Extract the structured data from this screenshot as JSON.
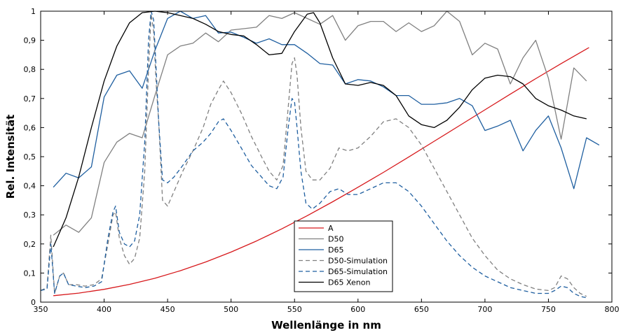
{
  "chart_data": {
    "type": "line",
    "title": "",
    "xlabel": "Wellenlänge in nm",
    "ylabel": "Rel. Intensität",
    "xlim": [
      350,
      800
    ],
    "ylim": [
      0,
      1
    ],
    "xticks": [
      350,
      400,
      450,
      500,
      550,
      600,
      650,
      700,
      750,
      800
    ],
    "yticks": [
      0,
      0.1,
      0.2,
      0.3,
      0.4,
      0.5,
      0.6,
      0.7,
      0.8,
      0.9,
      1
    ],
    "xtick_labels": [
      "350",
      "400",
      "450",
      "500",
      "550",
      "600",
      "650",
      "700",
      "750",
      "800"
    ],
    "ytick_labels": [
      "0",
      "0,1",
      "0,2",
      "0,3",
      "0,4",
      "0,5",
      "0,6",
      "0,7",
      "0,8",
      "0,9",
      "1"
    ],
    "grid": false,
    "legend_position": "bottom-center",
    "series": [
      {
        "name": "A",
        "color": "#d7191c",
        "dash": "solid",
        "points": [
          [
            360,
            0.022
          ],
          [
            380,
            0.031
          ],
          [
            400,
            0.044
          ],
          [
            420,
            0.061
          ],
          [
            440,
            0.082
          ],
          [
            460,
            0.108
          ],
          [
            480,
            0.138
          ],
          [
            500,
            0.172
          ],
          [
            520,
            0.21
          ],
          [
            540,
            0.252
          ],
          [
            560,
            0.297
          ],
          [
            580,
            0.345
          ],
          [
            600,
            0.395
          ],
          [
            620,
            0.446
          ],
          [
            640,
            0.499
          ],
          [
            660,
            0.553
          ],
          [
            680,
            0.607
          ],
          [
            700,
            0.661
          ],
          [
            720,
            0.715
          ],
          [
            740,
            0.768
          ],
          [
            760,
            0.82
          ],
          [
            780,
            0.87
          ],
          [
            782,
            0.875
          ]
        ]
      },
      {
        "name": "D50",
        "color": "#808080",
        "dash": "solid",
        "points": [
          [
            360,
            0.23
          ],
          [
            370,
            0.265
          ],
          [
            380,
            0.24
          ],
          [
            390,
            0.29
          ],
          [
            400,
            0.48
          ],
          [
            410,
            0.55
          ],
          [
            420,
            0.58
          ],
          [
            430,
            0.565
          ],
          [
            440,
            0.71
          ],
          [
            450,
            0.85
          ],
          [
            460,
            0.88
          ],
          [
            470,
            0.89
          ],
          [
            480,
            0.925
          ],
          [
            490,
            0.895
          ],
          [
            500,
            0.935
          ],
          [
            510,
            0.94
          ],
          [
            520,
            0.945
          ],
          [
            530,
            0.985
          ],
          [
            540,
            0.975
          ],
          [
            550,
            0.995
          ],
          [
            560,
            0.975
          ],
          [
            570,
            0.955
          ],
          [
            580,
            0.985
          ],
          [
            590,
            0.9
          ],
          [
            600,
            0.95
          ],
          [
            610,
            0.965
          ],
          [
            620,
            0.965
          ],
          [
            630,
            0.93
          ],
          [
            640,
            0.96
          ],
          [
            650,
            0.93
          ],
          [
            660,
            0.95
          ],
          [
            670,
            1.0
          ],
          [
            680,
            0.965
          ],
          [
            690,
            0.85
          ],
          [
            700,
            0.89
          ],
          [
            710,
            0.87
          ],
          [
            720,
            0.75
          ],
          [
            730,
            0.84
          ],
          [
            740,
            0.9
          ],
          [
            750,
            0.77
          ],
          [
            760,
            0.56
          ],
          [
            770,
            0.805
          ],
          [
            780,
            0.76
          ]
        ]
      },
      {
        "name": "D65",
        "color": "#1f5fa0",
        "dash": "solid",
        "points": [
          [
            360,
            0.395
          ],
          [
            370,
            0.443
          ],
          [
            380,
            0.427
          ],
          [
            390,
            0.465
          ],
          [
            400,
            0.705
          ],
          [
            410,
            0.78
          ],
          [
            420,
            0.795
          ],
          [
            430,
            0.735
          ],
          [
            440,
            0.865
          ],
          [
            450,
            0.975
          ],
          [
            460,
            1.0
          ],
          [
            470,
            0.975
          ],
          [
            480,
            0.985
          ],
          [
            490,
            0.925
          ],
          [
            500,
            0.928
          ],
          [
            510,
            0.91
          ],
          [
            520,
            0.89
          ],
          [
            530,
            0.905
          ],
          [
            540,
            0.885
          ],
          [
            550,
            0.885
          ],
          [
            560,
            0.855
          ],
          [
            570,
            0.82
          ],
          [
            580,
            0.815
          ],
          [
            590,
            0.75
          ],
          [
            600,
            0.765
          ],
          [
            610,
            0.76
          ],
          [
            620,
            0.74
          ],
          [
            630,
            0.71
          ],
          [
            640,
            0.71
          ],
          [
            650,
            0.68
          ],
          [
            660,
            0.68
          ],
          [
            670,
            0.685
          ],
          [
            680,
            0.7
          ],
          [
            690,
            0.675
          ],
          [
            700,
            0.59
          ],
          [
            710,
            0.605
          ],
          [
            720,
            0.625
          ],
          [
            730,
            0.52
          ],
          [
            740,
            0.59
          ],
          [
            750,
            0.64
          ],
          [
            760,
            0.53
          ],
          [
            770,
            0.39
          ],
          [
            780,
            0.565
          ],
          [
            790,
            0.54
          ]
        ]
      },
      {
        "name": "D50-Simulation",
        "color": "#808080",
        "dash": "dashed",
        "points": [
          [
            350,
            0.04
          ],
          [
            355,
            0.05
          ],
          [
            358,
            0.23
          ],
          [
            361,
            0.03
          ],
          [
            365,
            0.09
          ],
          [
            368,
            0.1
          ],
          [
            372,
            0.06
          ],
          [
            378,
            0.06
          ],
          [
            385,
            0.055
          ],
          [
            392,
            0.06
          ],
          [
            398,
            0.08
          ],
          [
            403,
            0.2
          ],
          [
            407,
            0.3
          ],
          [
            409,
            0.31
          ],
          [
            412,
            0.22
          ],
          [
            416,
            0.16
          ],
          [
            420,
            0.13
          ],
          [
            424,
            0.15
          ],
          [
            428,
            0.22
          ],
          [
            432,
            0.45
          ],
          [
            435,
            0.8
          ],
          [
            437,
            0.99
          ],
          [
            439,
            0.93
          ],
          [
            441,
            0.75
          ],
          [
            443,
            0.62
          ],
          [
            446,
            0.35
          ],
          [
            450,
            0.33
          ],
          [
            455,
            0.38
          ],
          [
            462,
            0.45
          ],
          [
            470,
            0.52
          ],
          [
            478,
            0.6
          ],
          [
            484,
            0.68
          ],
          [
            490,
            0.73
          ],
          [
            494,
            0.76
          ],
          [
            500,
            0.72
          ],
          [
            508,
            0.65
          ],
          [
            516,
            0.57
          ],
          [
            524,
            0.5
          ],
          [
            530,
            0.45
          ],
          [
            536,
            0.42
          ],
          [
            541,
            0.47
          ],
          [
            545,
            0.67
          ],
          [
            548,
            0.82
          ],
          [
            550,
            0.84
          ],
          [
            552,
            0.78
          ],
          [
            555,
            0.6
          ],
          [
            559,
            0.45
          ],
          [
            564,
            0.42
          ],
          [
            570,
            0.42
          ],
          [
            578,
            0.46
          ],
          [
            585,
            0.53
          ],
          [
            592,
            0.52
          ],
          [
            600,
            0.53
          ],
          [
            610,
            0.57
          ],
          [
            620,
            0.62
          ],
          [
            630,
            0.63
          ],
          [
            640,
            0.6
          ],
          [
            650,
            0.54
          ],
          [
            660,
            0.46
          ],
          [
            670,
            0.38
          ],
          [
            680,
            0.3
          ],
          [
            690,
            0.22
          ],
          [
            700,
            0.16
          ],
          [
            710,
            0.11
          ],
          [
            720,
            0.08
          ],
          [
            730,
            0.06
          ],
          [
            740,
            0.045
          ],
          [
            750,
            0.04
          ],
          [
            755,
            0.05
          ],
          [
            760,
            0.09
          ],
          [
            765,
            0.08
          ],
          [
            770,
            0.05
          ],
          [
            775,
            0.03
          ],
          [
            780,
            0.02
          ]
        ]
      },
      {
        "name": "D65-Simulation",
        "color": "#1f5fa0",
        "dash": "dashed",
        "points": [
          [
            350,
            0.04
          ],
          [
            355,
            0.045
          ],
          [
            358,
            0.2
          ],
          [
            361,
            0.03
          ],
          [
            365,
            0.09
          ],
          [
            368,
            0.1
          ],
          [
            372,
            0.06
          ],
          [
            378,
            0.055
          ],
          [
            385,
            0.05
          ],
          [
            392,
            0.055
          ],
          [
            398,
            0.07
          ],
          [
            403,
            0.22
          ],
          [
            407,
            0.31
          ],
          [
            409,
            0.33
          ],
          [
            412,
            0.24
          ],
          [
            416,
            0.2
          ],
          [
            420,
            0.19
          ],
          [
            424,
            0.21
          ],
          [
            428,
            0.3
          ],
          [
            432,
            0.55
          ],
          [
            435,
            0.9
          ],
          [
            437,
            1.0
          ],
          [
            439,
            0.97
          ],
          [
            441,
            0.8
          ],
          [
            443,
            0.62
          ],
          [
            446,
            0.42
          ],
          [
            450,
            0.41
          ],
          [
            455,
            0.43
          ],
          [
            462,
            0.47
          ],
          [
            470,
            0.52
          ],
          [
            478,
            0.55
          ],
          [
            484,
            0.58
          ],
          [
            490,
            0.62
          ],
          [
            494,
            0.63
          ],
          [
            500,
            0.59
          ],
          [
            508,
            0.53
          ],
          [
            516,
            0.47
          ],
          [
            524,
            0.43
          ],
          [
            530,
            0.4
          ],
          [
            536,
            0.39
          ],
          [
            541,
            0.43
          ],
          [
            545,
            0.6
          ],
          [
            548,
            0.7
          ],
          [
            550,
            0.69
          ],
          [
            552,
            0.6
          ],
          [
            555,
            0.45
          ],
          [
            559,
            0.34
          ],
          [
            564,
            0.32
          ],
          [
            570,
            0.34
          ],
          [
            578,
            0.38
          ],
          [
            585,
            0.39
          ],
          [
            592,
            0.37
          ],
          [
            600,
            0.37
          ],
          [
            610,
            0.39
          ],
          [
            620,
            0.41
          ],
          [
            630,
            0.41
          ],
          [
            640,
            0.38
          ],
          [
            650,
            0.33
          ],
          [
            660,
            0.27
          ],
          [
            670,
            0.21
          ],
          [
            680,
            0.16
          ],
          [
            690,
            0.12
          ],
          [
            700,
            0.09
          ],
          [
            710,
            0.07
          ],
          [
            720,
            0.05
          ],
          [
            730,
            0.04
          ],
          [
            740,
            0.03
          ],
          [
            750,
            0.03
          ],
          [
            755,
            0.04
          ],
          [
            760,
            0.055
          ],
          [
            765,
            0.05
          ],
          [
            770,
            0.03
          ],
          [
            775,
            0.02
          ],
          [
            780,
            0.015
          ]
        ]
      },
      {
        "name": "D65 Xenon",
        "color": "#000000",
        "dash": "solid",
        "points": [
          [
            360,
            0.19
          ],
          [
            370,
            0.29
          ],
          [
            380,
            0.43
          ],
          [
            390,
            0.6
          ],
          [
            400,
            0.76
          ],
          [
            410,
            0.88
          ],
          [
            420,
            0.96
          ],
          [
            430,
            0.995
          ],
          [
            440,
            1.0
          ],
          [
            450,
            0.995
          ],
          [
            460,
            0.985
          ],
          [
            470,
            0.975
          ],
          [
            480,
            0.955
          ],
          [
            490,
            0.93
          ],
          [
            500,
            0.92
          ],
          [
            510,
            0.915
          ],
          [
            520,
            0.885
          ],
          [
            530,
            0.85
          ],
          [
            540,
            0.855
          ],
          [
            550,
            0.93
          ],
          [
            560,
            0.99
          ],
          [
            565,
            0.995
          ],
          [
            570,
            0.96
          ],
          [
            580,
            0.84
          ],
          [
            590,
            0.75
          ],
          [
            600,
            0.745
          ],
          [
            610,
            0.755
          ],
          [
            620,
            0.745
          ],
          [
            630,
            0.71
          ],
          [
            640,
            0.64
          ],
          [
            650,
            0.61
          ],
          [
            660,
            0.6
          ],
          [
            670,
            0.625
          ],
          [
            680,
            0.67
          ],
          [
            690,
            0.73
          ],
          [
            700,
            0.77
          ],
          [
            710,
            0.78
          ],
          [
            720,
            0.775
          ],
          [
            730,
            0.75
          ],
          [
            740,
            0.7
          ],
          [
            750,
            0.675
          ],
          [
            760,
            0.66
          ],
          [
            770,
            0.64
          ],
          [
            780,
            0.63
          ]
        ]
      }
    ]
  }
}
